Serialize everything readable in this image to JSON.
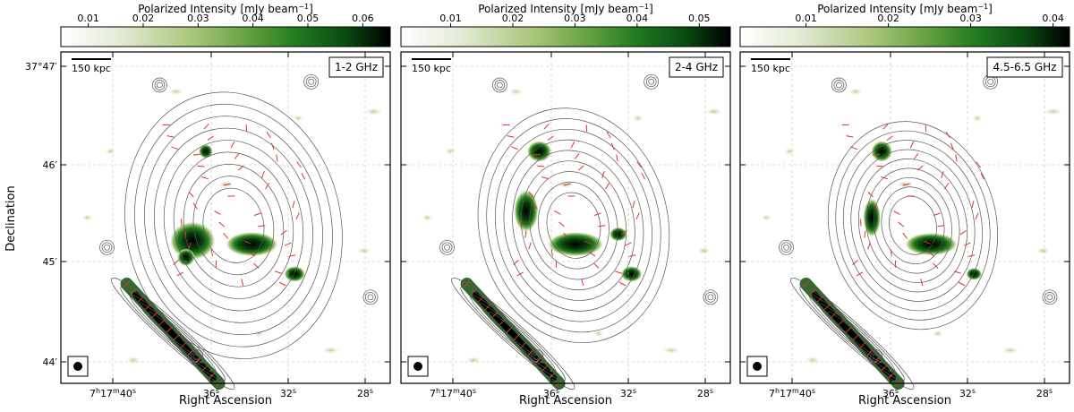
{
  "figure": {
    "ylabel": "Declination",
    "xlabel": "Right Ascension",
    "colorbar_label": "Polarized Intensity [mJy beam",
    "colorbar_label_exp": "−1",
    "colorbar_label_close": "]",
    "scale_bar_label": "150 kpc",
    "dec_ticks": [
      {
        "deg": "37°47′",
        "label": "37°47′"
      },
      {
        "deg": "46′",
        "label": "46′"
      },
      {
        "deg": "45′",
        "label": "45′"
      },
      {
        "deg": "44′",
        "label": "44′"
      }
    ],
    "ra_ticks": [
      {
        "base": "7",
        "h": "h",
        "base2": "17",
        "m": "m",
        "base3": "40",
        "s": "s"
      },
      {
        "base": "36",
        "s": "s"
      },
      {
        "base": "32",
        "s": "s"
      },
      {
        "base": "28",
        "s": "s"
      }
    ],
    "colormap": [
      "#ffffff",
      "#e3ebd4",
      "#a9c77a",
      "#5e9f3c",
      "#207a1e",
      "#0b4c12",
      "#000000"
    ],
    "contour_color": "#555555",
    "vector_color": "#e0302a",
    "grid": true
  },
  "chart_data": [
    {
      "type": "heatmap",
      "band_label": "1-2 GHz",
      "colorbar_ticks": [
        "0.01",
        "0.02",
        "0.03",
        "0.04",
        "0.05",
        "0.06"
      ],
      "colorbar_range": [
        0.005,
        0.065
      ],
      "colorbar_unit": "mJy beam−1"
    },
    {
      "type": "heatmap",
      "band_label": "2-4 GHz",
      "colorbar_ticks": [
        "0.01",
        "0.02",
        "0.03",
        "0.04",
        "0.05"
      ],
      "colorbar_range": [
        0.002,
        0.055
      ],
      "colorbar_unit": "mJy beam−1"
    },
    {
      "type": "heatmap",
      "band_label": "4.5-6.5 GHz",
      "colorbar_ticks": [
        "0.01",
        "0.02",
        "0.03",
        "0.04"
      ],
      "colorbar_range": [
        0.002,
        0.042
      ],
      "colorbar_unit": "mJy beam−1"
    }
  ]
}
